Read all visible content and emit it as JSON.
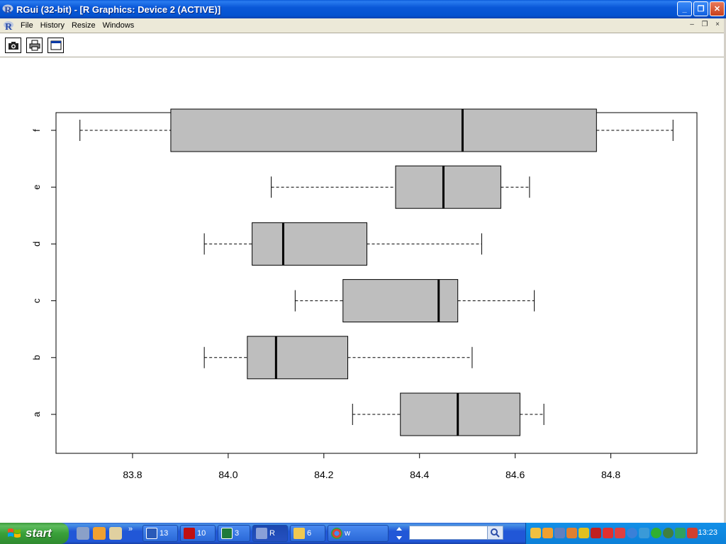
{
  "window": {
    "title": "RGui (32-bit) - [R Graphics: Device 2 (ACTIVE)]",
    "minimize": "_",
    "maximize": "❐",
    "close": "✕"
  },
  "menu": {
    "items": [
      "File",
      "History",
      "Resize",
      "Windows"
    ],
    "mdi_controls": [
      "–",
      "❐",
      "×"
    ]
  },
  "toolbar": {
    "buttons": [
      "camera-icon",
      "printer-icon",
      "window-icon"
    ]
  },
  "chart_data": {
    "type": "boxplot",
    "orientation": "horizontal",
    "categories": [
      "a",
      "b",
      "c",
      "d",
      "e",
      "f"
    ],
    "boxes": [
      {
        "name": "a",
        "min": 84.26,
        "q1": 84.36,
        "median": 84.48,
        "q3": 84.61,
        "max": 84.66
      },
      {
        "name": "b",
        "min": 83.95,
        "q1": 84.04,
        "median": 84.1,
        "q3": 84.25,
        "max": 84.51
      },
      {
        "name": "c",
        "min": 84.14,
        "q1": 84.24,
        "median": 84.44,
        "q3": 84.48,
        "max": 84.64
      },
      {
        "name": "d",
        "min": 83.95,
        "q1": 84.05,
        "median": 84.115,
        "q3": 84.29,
        "max": 84.53
      },
      {
        "name": "e",
        "min": 84.09,
        "q1": 84.35,
        "median": 84.45,
        "q3": 84.57,
        "max": 84.63
      },
      {
        "name": "f",
        "min": 83.69,
        "q1": 83.88,
        "median": 84.49,
        "q3": 84.77,
        "max": 84.93
      }
    ],
    "xticks": [
      "83.8",
      "84.0",
      "84.2",
      "84.4",
      "84.6",
      "84.8"
    ],
    "xlim": [
      83.64,
      84.98
    ],
    "box_color": "#bebebe",
    "grid": false
  },
  "taskbar": {
    "start_label": "start",
    "tasks": [
      {
        "label": "13",
        "icon": "word-icon"
      },
      {
        "label": "10",
        "icon": "acrobat-icon"
      },
      {
        "label": "3",
        "icon": "excel-icon"
      },
      {
        "label": "R",
        "icon": "r-icon"
      },
      {
        "label": "6",
        "icon": "folder-icon"
      },
      {
        "label": "w",
        "icon": "chrome-icon"
      }
    ],
    "search_placeholder": "",
    "clock": "13:23"
  }
}
